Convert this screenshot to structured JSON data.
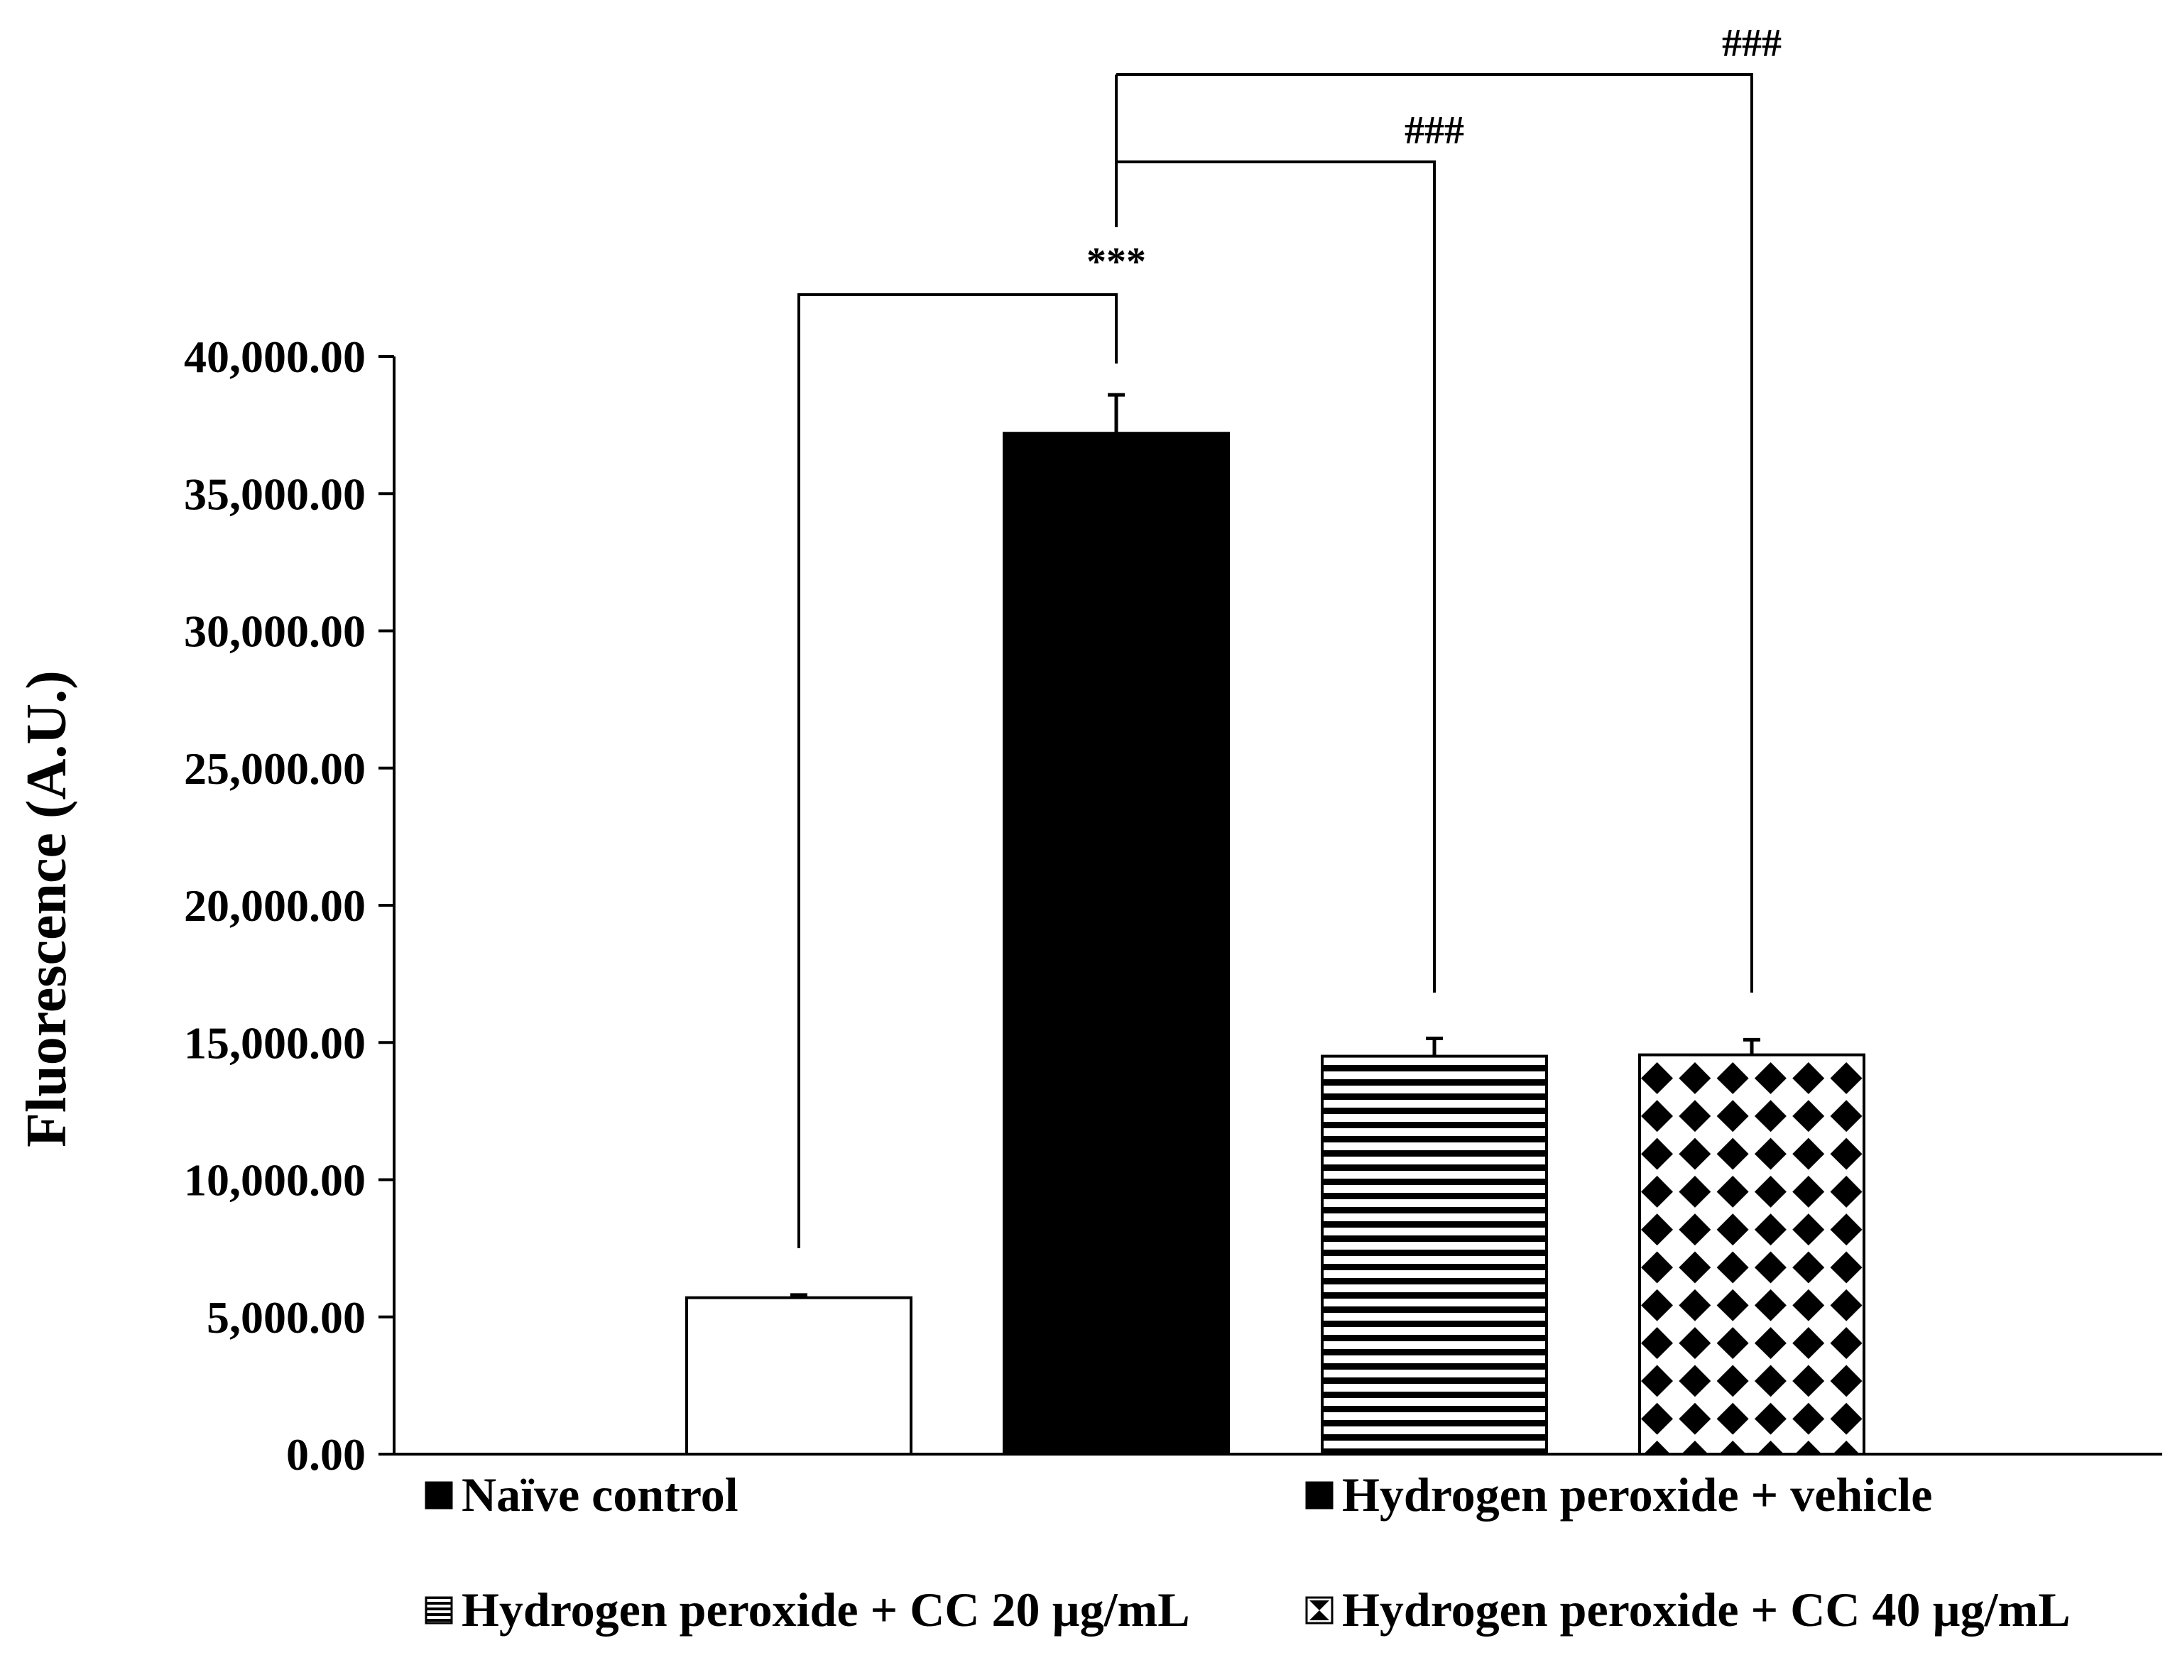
{
  "chart_data": {
    "type": "bar",
    "categories": [
      "Naïve control",
      "Hydrogen peroxide + vehicle",
      "Hydrogen peroxide + CC 20 µg/mL",
      "Hydrogen peroxide + CC 40 µg/mL"
    ],
    "values": [
      5700,
      37200,
      14500,
      14550
    ],
    "errors": [
      100,
      1400,
      650,
      550
    ],
    "patterns": [
      "white",
      "solid",
      "horizontal-stripes",
      "diamond-checker"
    ],
    "ylabel": "Fluorescence (A.U.)",
    "xlabel": "",
    "title": "",
    "ylim": [
      0,
      40000
    ],
    "yticks": [
      0,
      5000,
      10000,
      15000,
      20000,
      25000,
      30000,
      35000,
      40000
    ],
    "ytick_labels": [
      "0.00",
      "5,000.00",
      "10,000.00",
      "15,000.00",
      "20,000.00",
      "25,000.00",
      "30,000.00",
      "35,000.00",
      "40,000.00"
    ],
    "grid": false,
    "legend": {
      "placement": "bottom",
      "entries": [
        "Naïve control",
        "Hydrogen peroxide + vehicle",
        "Hydrogen peroxide + CC 20 µg/mL",
        "Hydrogen peroxide + CC 40 µg/mL"
      ]
    },
    "annotations": [
      {
        "from": 0,
        "to": 1,
        "label": "***"
      },
      {
        "from": 1,
        "to": 2,
        "label": "###"
      },
      {
        "from": 1,
        "to": 3,
        "label": "###"
      }
    ]
  }
}
